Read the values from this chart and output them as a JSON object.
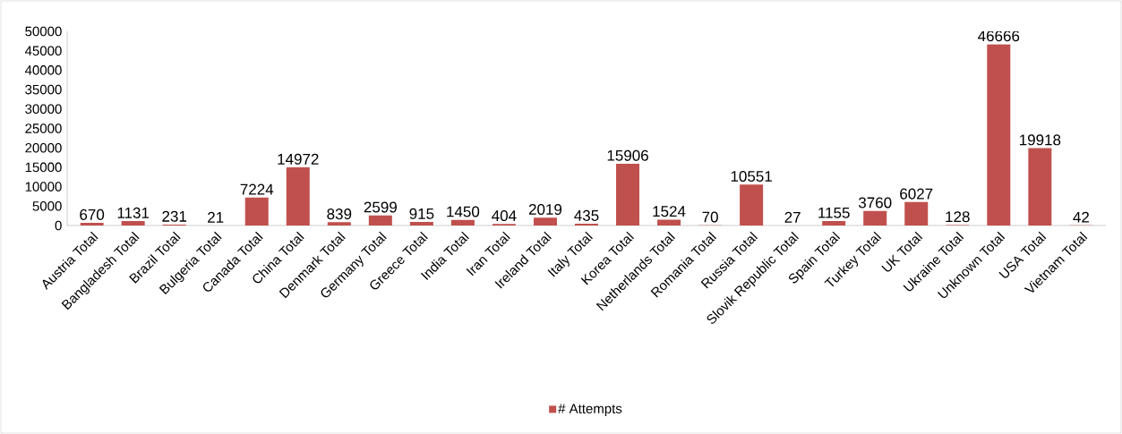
{
  "chart_data": {
    "type": "bar",
    "categories": [
      "Austria Total",
      "Bangladesh Total",
      "Brazil Total",
      "Bulgeria Total",
      "Canada Total",
      "China Total",
      "Denmark Total",
      "Germany Total",
      "Greece Total",
      "India Total",
      "Iran Total",
      "Ireland Total",
      "Italy Total",
      "Korea Total",
      "Netherlands Total",
      "Romania Total",
      "Russia Total",
      "Slovik Republic Total",
      "Spain Total",
      "Turkey Total",
      "UK Total",
      "Ukraine Total",
      "Unknown Total",
      "USA Total",
      "Vietnam Total"
    ],
    "series": [
      {
        "name": "# Attempts",
        "color": "#c0504d",
        "values": [
          670,
          1131,
          231,
          21,
          7224,
          14972,
          839,
          2599,
          915,
          1450,
          404,
          2019,
          435,
          15906,
          1524,
          70,
          10551,
          27,
          1155,
          3760,
          6027,
          128,
          46666,
          19918,
          42
        ]
      }
    ],
    "ylim": [
      0,
      50000
    ],
    "yticks": [
      0,
      5000,
      10000,
      15000,
      20000,
      25000,
      30000,
      35000,
      40000,
      45000,
      50000
    ],
    "data_labels": true,
    "grid": false,
    "legend": "bottom"
  }
}
